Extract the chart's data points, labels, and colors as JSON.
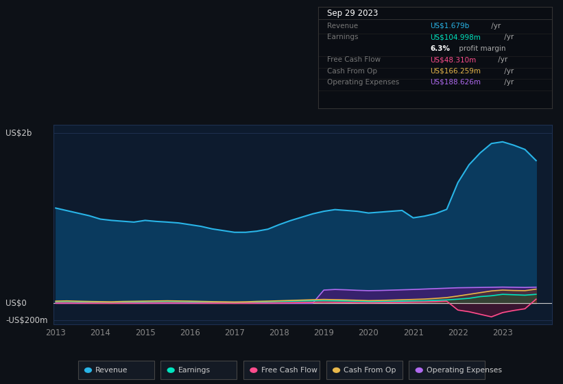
{
  "bg_color": "#0d1117",
  "plot_bg_color": "#0d1b2e",
  "grid_color": "#1e3050",
  "text_color": "#888888",
  "years": [
    2013.0,
    2013.25,
    2013.5,
    2013.75,
    2014.0,
    2014.25,
    2014.5,
    2014.75,
    2015.0,
    2015.25,
    2015.5,
    2015.75,
    2016.0,
    2016.25,
    2016.5,
    2016.75,
    2017.0,
    2017.25,
    2017.5,
    2017.75,
    2018.0,
    2018.25,
    2018.5,
    2018.75,
    2019.0,
    2019.25,
    2019.5,
    2019.75,
    2020.0,
    2020.25,
    2020.5,
    2020.75,
    2021.0,
    2021.25,
    2021.5,
    2021.75,
    2022.0,
    2022.25,
    2022.5,
    2022.75,
    2023.0,
    2023.25,
    2023.5,
    2023.75
  ],
  "revenue": [
    1120,
    1090,
    1060,
    1030,
    990,
    975,
    965,
    955,
    975,
    963,
    955,
    945,
    925,
    905,
    875,
    855,
    835,
    835,
    848,
    872,
    925,
    972,
    1012,
    1052,
    1082,
    1102,
    1092,
    1082,
    1062,
    1072,
    1082,
    1092,
    1005,
    1025,
    1055,
    1105,
    1420,
    1630,
    1770,
    1880,
    1900,
    1860,
    1810,
    1679
  ],
  "earnings": [
    18,
    20,
    17,
    14,
    10,
    8,
    11,
    13,
    17,
    19,
    21,
    19,
    17,
    14,
    11,
    9,
    7,
    9,
    14,
    17,
    21,
    24,
    27,
    29,
    31,
    29,
    27,
    24,
    19,
    21,
    23,
    25,
    27,
    29,
    34,
    39,
    48,
    58,
    78,
    88,
    105,
    100,
    95,
    105
  ],
  "free_cash_flow": [
    4,
    5,
    3,
    2,
    1,
    0,
    2,
    3,
    4,
    5,
    6,
    5,
    4,
    3,
    2,
    1,
    0,
    1,
    3,
    4,
    5,
    7,
    9,
    11,
    13,
    11,
    9,
    7,
    5,
    7,
    9,
    11,
    13,
    15,
    19,
    24,
    -80,
    -100,
    -130,
    -160,
    -110,
    -85,
    -65,
    48
  ],
  "cash_from_op": [
    25,
    28,
    24,
    21,
    19,
    17,
    21,
    23,
    25,
    27,
    29,
    27,
    25,
    22,
    19,
    17,
    15,
    17,
    22,
    25,
    29,
    33,
    37,
    41,
    45,
    42,
    39,
    35,
    31,
    33,
    37,
    41,
    45,
    49,
    57,
    67,
    85,
    105,
    125,
    145,
    155,
    150,
    148,
    166
  ],
  "operating_expenses": [
    0,
    0,
    0,
    0,
    0,
    0,
    0,
    0,
    0,
    0,
    0,
    0,
    0,
    0,
    0,
    0,
    0,
    0,
    0,
    0,
    0,
    0,
    0,
    0,
    155,
    162,
    158,
    152,
    148,
    150,
    154,
    158,
    162,
    167,
    172,
    177,
    182,
    184,
    186,
    188,
    190,
    188,
    186,
    189
  ],
  "revenue_color": "#29b5e8",
  "revenue_fill": "#0a3a5e",
  "earnings_color": "#00e5c0",
  "fcf_color": "#ff4d8d",
  "cashop_color": "#e8b84b",
  "opex_color": "#b06af0",
  "opex_fill": "#3d1f6e",
  "ylim": [
    -250,
    2100
  ],
  "ytick_positions": [
    -200,
    0,
    2000
  ],
  "ytick_labels_text": [
    "-US$200m",
    "US$0",
    "US$2b"
  ],
  "xticks": [
    2013,
    2014,
    2015,
    2016,
    2017,
    2018,
    2019,
    2020,
    2021,
    2022,
    2023
  ],
  "tooltip": {
    "date": "Sep 29 2023",
    "rows": [
      {
        "label": "Revenue",
        "value": "US$1.679b",
        "unit": " /yr",
        "color": "#29b5e8",
        "sub": null
      },
      {
        "label": "Earnings",
        "value": "US$104.998m",
        "unit": " /yr",
        "color": "#00e5c0",
        "sub": "6.3% profit margin"
      },
      {
        "label": "Free Cash Flow",
        "value": "US$48.310m",
        "unit": " /yr",
        "color": "#ff4d8d",
        "sub": null
      },
      {
        "label": "Cash From Op",
        "value": "US$166.259m",
        "unit": " /yr",
        "color": "#e8b84b",
        "sub": null
      },
      {
        "label": "Operating Expenses",
        "value": "US$188.626m",
        "unit": " /yr",
        "color": "#b06af0",
        "sub": null
      }
    ]
  },
  "legend_items": [
    {
      "label": "Revenue",
      "color": "#29b5e8"
    },
    {
      "label": "Earnings",
      "color": "#00e5c0"
    },
    {
      "label": "Free Cash Flow",
      "color": "#ff4d8d"
    },
    {
      "label": "Cash From Op",
      "color": "#e8b84b"
    },
    {
      "label": "Operating Expenses",
      "color": "#b06af0"
    }
  ]
}
